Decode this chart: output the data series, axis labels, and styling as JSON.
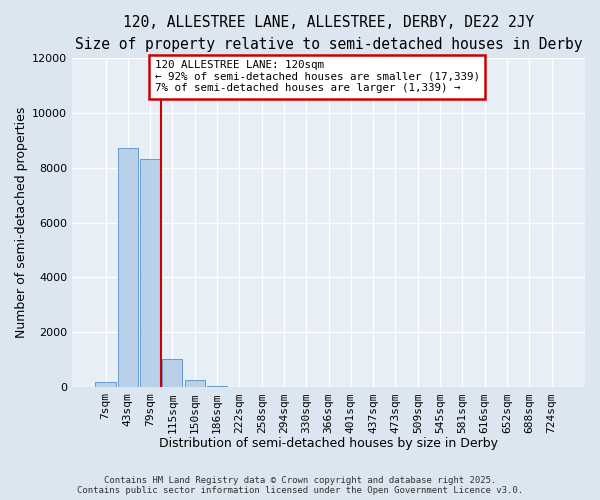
{
  "title_line1": "120, ALLESTREE LANE, ALLESTREE, DERBY, DE22 2JY",
  "title_line2": "Size of property relative to semi-detached houses in Derby",
  "xlabel": "Distribution of semi-detached houses by size in Derby",
  "ylabel": "Number of semi-detached properties",
  "footnote": "Contains HM Land Registry data © Crown copyright and database right 2025.\nContains public sector information licensed under the Open Government Licence v3.0.",
  "categories": [
    "7sqm",
    "43sqm",
    "79sqm",
    "115sqm",
    "150sqm",
    "186sqm",
    "222sqm",
    "258sqm",
    "294sqm",
    "330sqm",
    "366sqm",
    "401sqm",
    "437sqm",
    "473sqm",
    "509sqm",
    "545sqm",
    "581sqm",
    "616sqm",
    "652sqm",
    "688sqm",
    "724sqm"
  ],
  "values": [
    200,
    8700,
    8300,
    1050,
    280,
    60,
    0,
    0,
    0,
    0,
    0,
    0,
    0,
    0,
    0,
    0,
    0,
    0,
    0,
    0,
    0
  ],
  "bar_color": "#b8d0e8",
  "bar_edge_color": "#6699cc",
  "vline_color": "#cc0000",
  "annotation_text": "120 ALLESTREE LANE: 120sqm\n← 92% of semi-detached houses are smaller (17,339)\n7% of semi-detached houses are larger (1,339) →",
  "annotation_box_color": "#cc0000",
  "annotation_bg_color": "#ffffff",
  "ylim": [
    0,
    12000
  ],
  "yticks": [
    0,
    2000,
    4000,
    6000,
    8000,
    10000,
    12000
  ],
  "bg_color": "#dce6f0",
  "plot_bg_color": "#e8eef5",
  "grid_color": "#ffffff",
  "title_fontsize": 10.5,
  "subtitle_fontsize": 9.5,
  "axis_label_fontsize": 9,
  "tick_fontsize": 8,
  "footnote_fontsize": 6.5
}
